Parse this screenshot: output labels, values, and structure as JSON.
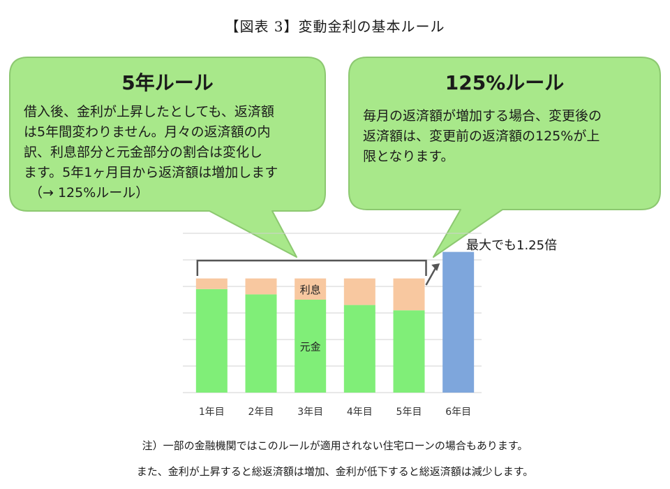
{
  "figure_title": "【図表 3】変動金利の基本ルール",
  "colors": {
    "bubble_fill": "#a8e88a",
    "bubble_stroke": "#8cc870",
    "principal": "#80ee78",
    "interest": "#f8c8a0",
    "year6": "#7ea6dc",
    "gridline": "#d0d0d0",
    "bracket": "#555555"
  },
  "bubble_left": {
    "title": "5年ルール",
    "lines": [
      "借入後、金利が上昇したとしても、返済額",
      "は5年間変わりません。月々の返済額の内",
      "訳、利息部分と元金部分の割合は変化し",
      "ます。5年1ヶ月目から返済額は増加します",
      "（→ 125%ルール）"
    ]
  },
  "bubble_right": {
    "title": "125%ルール",
    "lines": [
      "毎月の返済額が増加する場合、変更後の",
      "返済額は、変更前の返済額の125%が上",
      "限となります。"
    ]
  },
  "chart_data": {
    "type": "bar",
    "stacked": true,
    "categories": [
      "1年目",
      "2年目",
      "3年目",
      "4年目",
      "5年目",
      "6年目"
    ],
    "series": [
      {
        "name": "元金",
        "values": [
          3.9,
          3.7,
          3.5,
          3.3,
          3.1,
          null
        ]
      },
      {
        "name": "利息",
        "values": [
          0.4,
          0.6,
          0.8,
          1.0,
          1.2,
          null
        ]
      },
      {
        "name": "",
        "values": [
          null,
          null,
          null,
          null,
          null,
          5.3
        ]
      }
    ],
    "ylim": [
      0,
      6
    ],
    "gridlines": true,
    "annotation": "最大でも1.25倍",
    "series_labels_in_bar": {
      "index": 2,
      "labels": [
        "利息",
        "元金"
      ]
    }
  },
  "notes": [
    "注）一部の金融機関ではこのルールが適用されない住宅ローンの場合もあります。",
    "また、金利が上昇すると総返済額は増加、金利が低下すると総返済額は減少します。"
  ]
}
